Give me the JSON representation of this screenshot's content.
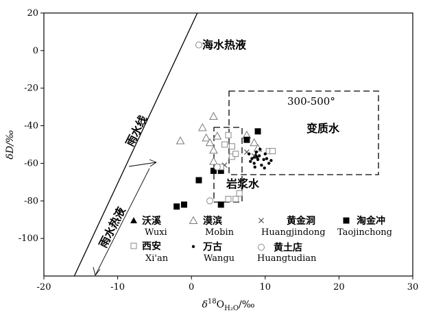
{
  "chart_data": {
    "type": "scatter",
    "xlabel": {
      "prefix": "δ",
      "sup": "18",
      "main": "O",
      "sub": "H₂O",
      "suffix": "/‰"
    },
    "ylabel": "δD/‰",
    "xlim": [
      -20,
      30
    ],
    "ylim": [
      -120,
      20
    ],
    "xticks": [
      -20,
      -10,
      0,
      10,
      20,
      30
    ],
    "yticks": [
      -100,
      -80,
      -60,
      -40,
      -20,
      0,
      20
    ],
    "grid": false,
    "legend_position": "bottom-center",
    "series": [
      {
        "name": "沃溪",
        "name_en": "Wuxi",
        "marker": "filled-triangle",
        "points": [
          [
            8.7,
            -56
          ]
        ]
      },
      {
        "name": "漠滨",
        "name_en": "Mobin",
        "marker": "open-triangle",
        "points": [
          [
            -1.5,
            -48
          ],
          [
            1.5,
            -41
          ],
          [
            2,
            -46.5
          ],
          [
            2.5,
            -49
          ],
          [
            3,
            -35
          ],
          [
            3.5,
            -45.5
          ],
          [
            3,
            -53
          ],
          [
            7.5,
            -45
          ],
          [
            8.5,
            -49
          ],
          [
            9,
            -52
          ],
          [
            3,
            -59
          ]
        ]
      },
      {
        "name": "黄金洞",
        "name_en": "Huangjindong",
        "marker": "cross",
        "points": [
          [
            4.5,
            -61
          ],
          [
            7.5,
            -54
          ],
          [
            8.5,
            -56
          ]
        ]
      },
      {
        "name": "淘金冲",
        "name_en": "Taojinchong",
        "marker": "filled-square",
        "points": [
          [
            -2,
            -83
          ],
          [
            -1,
            -82
          ],
          [
            1,
            -69
          ],
          [
            3,
            -64
          ],
          [
            4,
            -64
          ],
          [
            4,
            -82
          ],
          [
            7.5,
            -47.5
          ],
          [
            9,
            -43
          ]
        ]
      },
      {
        "name": "西安",
        "name_en": "Xi'an",
        "marker": "open-square",
        "points": [
          [
            4.5,
            -50
          ],
          [
            5,
            -45
          ],
          [
            5.5,
            -51
          ],
          [
            5.5,
            -56.5
          ],
          [
            6,
            -55
          ],
          [
            4,
            -62
          ],
          [
            6.5,
            -76
          ],
          [
            6,
            -79
          ],
          [
            5,
            -79
          ],
          [
            10.5,
            -53.5
          ],
          [
            11,
            -53.5
          ]
        ]
      },
      {
        "name": "万古",
        "name_en": "Wangu",
        "marker": "dot",
        "points": [
          [
            7.8,
            -55
          ],
          [
            8.2,
            -57.5
          ],
          [
            8.5,
            -60
          ],
          [
            8.8,
            -54
          ],
          [
            9,
            -58
          ],
          [
            9.2,
            -56
          ],
          [
            9.5,
            -61
          ],
          [
            9.8,
            -58
          ],
          [
            10,
            -55
          ],
          [
            10.2,
            -57.5
          ],
          [
            10.5,
            -60
          ],
          [
            8,
            -59
          ],
          [
            9.3,
            -52.5
          ],
          [
            10.8,
            -58.5
          ],
          [
            8.6,
            -62
          ],
          [
            9.9,
            -62.5
          ]
        ]
      },
      {
        "name": "黄土店",
        "name_en": "Huangtudian",
        "marker": "open-circle",
        "points": [
          [
            1,
            3
          ],
          [
            2.5,
            -80
          ],
          [
            3.5,
            -62
          ]
        ]
      }
    ],
    "annotations": [
      {
        "text": "海水热液"
      },
      {
        "text": "雨水线"
      },
      {
        "text": "300-500°"
      },
      {
        "text": "变质水"
      },
      {
        "text": "岩浆水"
      },
      {
        "text": "雨水热液"
      }
    ]
  }
}
